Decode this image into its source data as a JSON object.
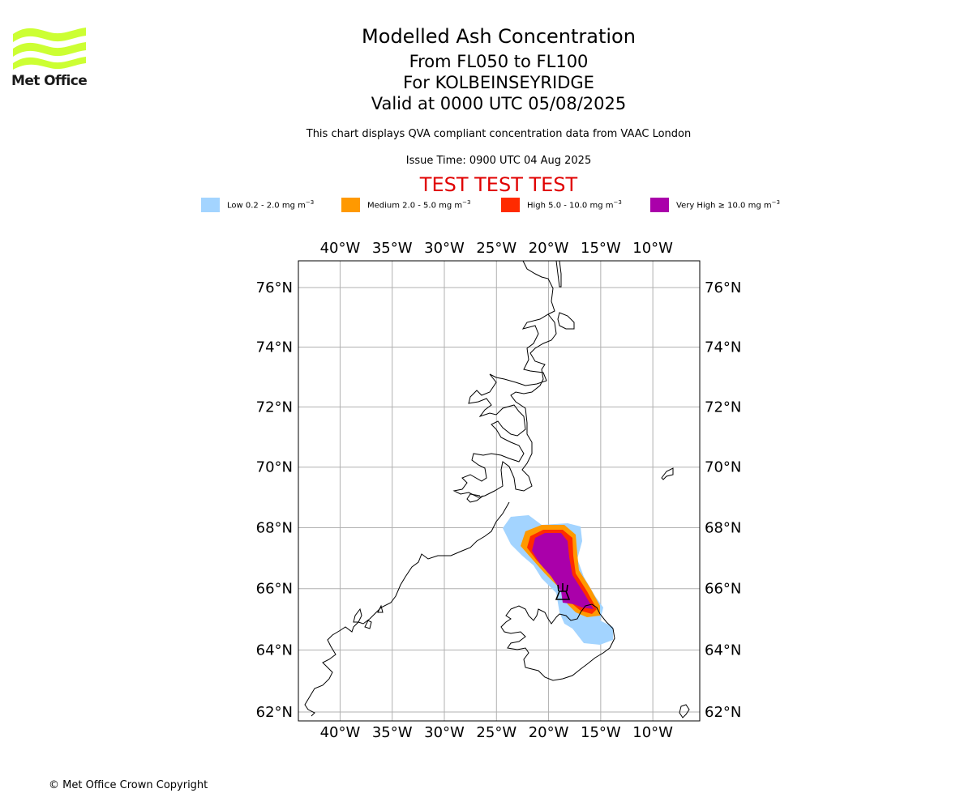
{
  "logo": {
    "text": "Met Office",
    "color": "#ccff33"
  },
  "header": {
    "title": "Modelled Ash Concentration",
    "level_range": "From FL050 to FL100",
    "volcano_line": "For KOLBEINSEYRIDGE",
    "valid_time": "Valid at 0000 UTC 05/08/2025",
    "compliance_note": "This chart displays QVA compliant concentration data from VAAC London",
    "issue_time": "Issue Time: 0900 UTC 04 Aug 2025",
    "test_banner": "TEST TEST TEST"
  },
  "legend": [
    {
      "name": "Low 0.2 - 2.0 mg m",
      "color": "#a3d4ff"
    },
    {
      "name": "Medium 2.0 - 5.0 mg m",
      "color": "#ff9900"
    },
    {
      "name": "High 5.0 - 10.0 mg m",
      "color": "#ff2b00"
    },
    {
      "name": "Very High ≥ 10.0 mg m",
      "color": "#aa00aa"
    }
  ],
  "legend_unit_exponent": "−3",
  "map": {
    "lon_ticks": [
      "40°W",
      "35°W",
      "30°W",
      "25°W",
      "20°W",
      "15°W",
      "10°W"
    ],
    "lat_ticks": [
      "76°N",
      "74°N",
      "72°N",
      "70°N",
      "68°N",
      "66°N",
      "64°N",
      "62°N"
    ],
    "lon_tick_values": [
      -40,
      -35,
      -30,
      -25,
      -20,
      -15,
      -10
    ],
    "lat_tick_values": [
      76,
      74,
      72,
      70,
      68,
      66,
      64,
      62
    ],
    "lon_range": [
      -44,
      -5.5
    ],
    "grid": true,
    "volcano_icon": "volcano-icon",
    "volcano_location": {
      "lon": -18.5,
      "lat": 66.9
    }
  },
  "footer": {
    "copyright": "© Met Office Crown Copyright"
  }
}
